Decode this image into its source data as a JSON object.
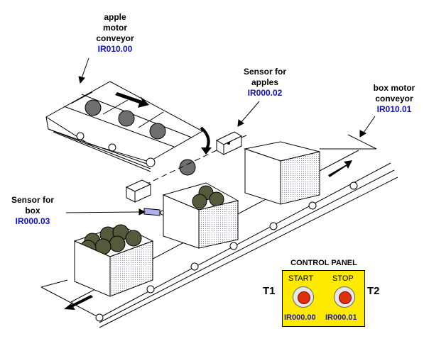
{
  "labels": {
    "apple_conveyor": {
      "line1": "apple",
      "line2": "motor",
      "line3": "conveyor",
      "address": "IR010.00"
    },
    "apple_sensor": {
      "line1": "Sensor for",
      "line2": "apples",
      "address": "IR000.02"
    },
    "box_conveyor": {
      "line1": "box motor",
      "line2": "conveyor",
      "address": "IR010.01"
    },
    "box_sensor": {
      "line1": "Sensor for",
      "line2": "box",
      "address": "IR000.03"
    }
  },
  "control_panel": {
    "title": "CONTROL  PANEL",
    "start": {
      "label": "START",
      "address": "IR000.00",
      "terminal": "T1"
    },
    "stop": {
      "label": "STOP",
      "address": "IR000.01",
      "terminal": "T2"
    }
  },
  "colors": {
    "panel": "#ffea00",
    "address": "#1010c8",
    "button": "#e03010",
    "apple": "#6e6e6e",
    "sensor": "#b0b0e8"
  }
}
